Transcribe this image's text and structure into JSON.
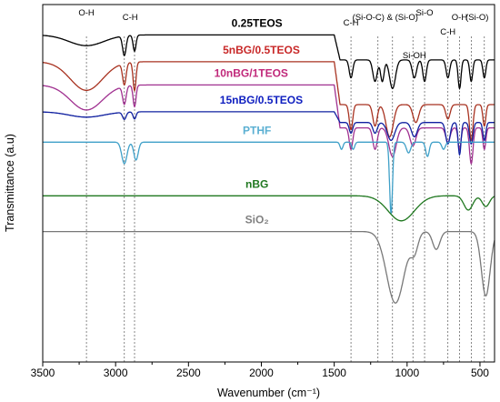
{
  "chart_data": {
    "type": "line",
    "title": "",
    "xlabel": "Wavenumber (cm⁻¹)",
    "ylabel": "Transmittance (a.u)",
    "xlim": [
      3500,
      400
    ],
    "x_reversed": true,
    "x_ticks": [
      "3500",
      "3000",
      "2500",
      "2000",
      "1500",
      "1000",
      "500"
    ],
    "y_ticks_shown": false,
    "grid": false,
    "legend": "inline-labels",
    "series": [
      {
        "name": "0.25TEOS",
        "color": "#000000",
        "label_color": "#000000",
        "label_at": 2030,
        "baseline": 0.915,
        "tail": 0.07,
        "peaks": [
          [
            3200,
            0.03,
            120
          ],
          [
            2940,
            0.055,
            12
          ],
          [
            2870,
            0.045,
            10
          ],
          [
            1385,
            0.05,
            12
          ],
          [
            1220,
            0.06,
            15
          ],
          [
            1170,
            0.06,
            12
          ],
          [
            1100,
            0.08,
            20
          ],
          [
            950,
            0.05,
            15
          ],
          [
            880,
            0.06,
            12
          ],
          [
            720,
            0.05,
            12
          ],
          [
            640,
            0.08,
            10
          ],
          [
            560,
            0.06,
            10
          ],
          [
            470,
            0.05,
            10
          ]
        ]
      },
      {
        "name": "5nBG/0.5TEOS",
        "color": "#A83220",
        "label_color": "#C82828",
        "label_at": 2000,
        "baseline": 0.84,
        "tail": 0.12,
        "peaks": [
          [
            3200,
            0.08,
            110
          ],
          [
            2940,
            0.06,
            12
          ],
          [
            2870,
            0.08,
            10
          ],
          [
            1385,
            0.07,
            12
          ],
          [
            1220,
            0.06,
            15
          ],
          [
            1120,
            0.09,
            25
          ],
          [
            940,
            0.05,
            20
          ],
          [
            720,
            0.04,
            15
          ],
          [
            560,
            0.1,
            12
          ],
          [
            470,
            0.06,
            10
          ]
        ]
      },
      {
        "name": "10nBG/1TEOS",
        "color": "#A03090",
        "label_color": "#C0287A",
        "label_at": 2070,
        "baseline": 0.775,
        "tail": 0.12,
        "peaks": [
          [
            3200,
            0.07,
            110
          ],
          [
            2940,
            0.05,
            12
          ],
          [
            2870,
            0.06,
            10
          ],
          [
            1385,
            0.06,
            12
          ],
          [
            1220,
            0.06,
            15
          ],
          [
            1100,
            0.08,
            25
          ],
          [
            960,
            0.05,
            20
          ],
          [
            720,
            0.04,
            15
          ],
          [
            640,
            0.06,
            10
          ],
          [
            560,
            0.1,
            12
          ],
          [
            470,
            0.06,
            10
          ]
        ]
      },
      {
        "name": "15nBG/0.5TEOS",
        "color": "#1020A0",
        "label_color": "#1020C0",
        "label_at": 2000,
        "baseline": 0.7,
        "tail": 0.03,
        "peaks": [
          [
            3200,
            0.015,
            120
          ],
          [
            2940,
            0.02,
            12
          ],
          [
            2870,
            0.02,
            10
          ],
          [
            1385,
            0.03,
            12
          ],
          [
            1220,
            0.03,
            15
          ],
          [
            1110,
            0.05,
            25
          ],
          [
            950,
            0.04,
            20
          ],
          [
            720,
            0.06,
            15
          ],
          [
            640,
            0.09,
            10
          ],
          [
            560,
            0.06,
            12
          ],
          [
            470,
            0.05,
            10
          ]
        ]
      },
      {
        "name": "PTHF",
        "color": "#3FA0C8",
        "label_color": "#5AAFD2",
        "label_at": 2030,
        "baseline": 0.615,
        "tail": 0.0,
        "peaks": [
          [
            2940,
            0.06,
            18
          ],
          [
            2860,
            0.05,
            15
          ],
          [
            1450,
            0.02,
            10
          ],
          [
            1370,
            0.02,
            10
          ],
          [
            1110,
            0.2,
            10
          ],
          [
            990,
            0.03,
            15
          ],
          [
            860,
            0.04,
            12
          ],
          [
            750,
            0.02,
            12
          ]
        ]
      },
      {
        "name": "nBG",
        "color": "#207820",
        "label_color": "#207820",
        "label_at": 2030,
        "baseline": 0.465,
        "tail": 0.0,
        "peaks": [
          [
            1040,
            0.07,
            90
          ],
          [
            580,
            0.04,
            30
          ],
          [
            460,
            0.03,
            25
          ]
        ]
      },
      {
        "name": "SiO₂",
        "color": "#787878",
        "label_color": "#808080",
        "label_at": 2030,
        "baseline": 0.365,
        "tail": 0.0,
        "peaks": [
          [
            1080,
            0.2,
            60
          ],
          [
            950,
            0.05,
            25
          ],
          [
            800,
            0.05,
            25
          ],
          [
            460,
            0.18,
            30
          ]
        ]
      }
    ],
    "annotations": [
      {
        "text": "O-H",
        "x": 3200
      },
      {
        "text": "C-H",
        "x": 2900
      },
      {
        "text": "C-H",
        "x": 1385
      },
      {
        "text": "(Si-O-C) & (Si-O)",
        "x": 1150
      },
      {
        "text": "Si-O",
        "x": 880
      },
      {
        "text": "Si-OH",
        "x": 950
      },
      {
        "text": "C-H",
        "x": 720
      },
      {
        "text": "O-H",
        "x": 640
      },
      {
        "text": "(Si-O)",
        "x": 520
      }
    ],
    "reference_lines": [
      3200,
      2940,
      2870,
      1385,
      1200,
      1100,
      960,
      880,
      720,
      640,
      560,
      470
    ]
  }
}
